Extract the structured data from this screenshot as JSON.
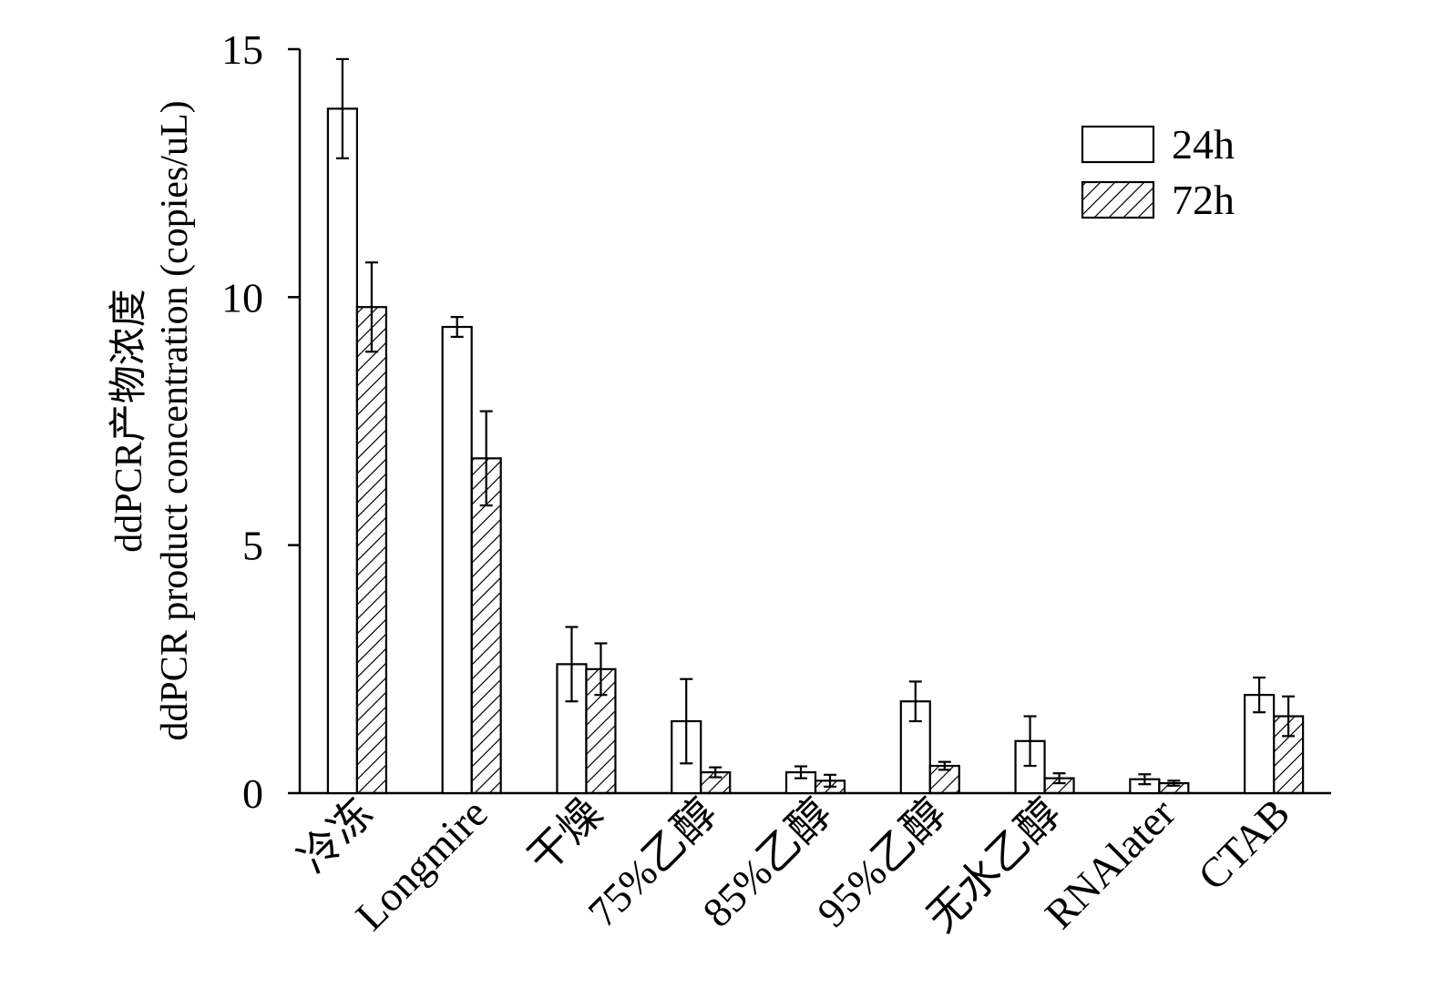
{
  "chart_data": {
    "type": "bar",
    "title": "",
    "xlabel": "",
    "ylabel_lines": [
      "ddPCR产物浓度",
      "ddPCR product concentration (copies/uL)"
    ],
    "ylim": [
      0,
      15
    ],
    "yticks": [
      0,
      5,
      10,
      15
    ],
    "yticks_labels": [
      "0",
      "5",
      "10",
      "15"
    ],
    "grid": false,
    "legend_position": "top-right",
    "categories": [
      "冷冻",
      "Longmire",
      "干燥",
      "75%乙醇",
      "85%乙醇",
      "95%乙醇",
      "无水乙醇",
      "RNAlater",
      "CTAB"
    ],
    "series": [
      {
        "name": "24h",
        "fill": "plain",
        "values": [
          13.8,
          9.4,
          2.6,
          1.45,
          0.42,
          1.85,
          1.05,
          0.28,
          1.98
        ],
        "errors": [
          1.0,
          0.2,
          0.75,
          0.85,
          0.12,
          0.4,
          0.5,
          0.1,
          0.35
        ]
      },
      {
        "name": "72h",
        "fill": "hatched",
        "values": [
          9.8,
          6.75,
          2.5,
          0.42,
          0.25,
          0.55,
          0.3,
          0.2,
          1.55
        ],
        "errors": [
          0.9,
          0.95,
          0.52,
          0.1,
          0.12,
          0.08,
          0.1,
          0.05,
          0.4
        ]
      }
    ],
    "colors": {
      "bar_stroke": "#000000",
      "bar_fill": "#ffffff",
      "hatch": "#000000"
    }
  }
}
